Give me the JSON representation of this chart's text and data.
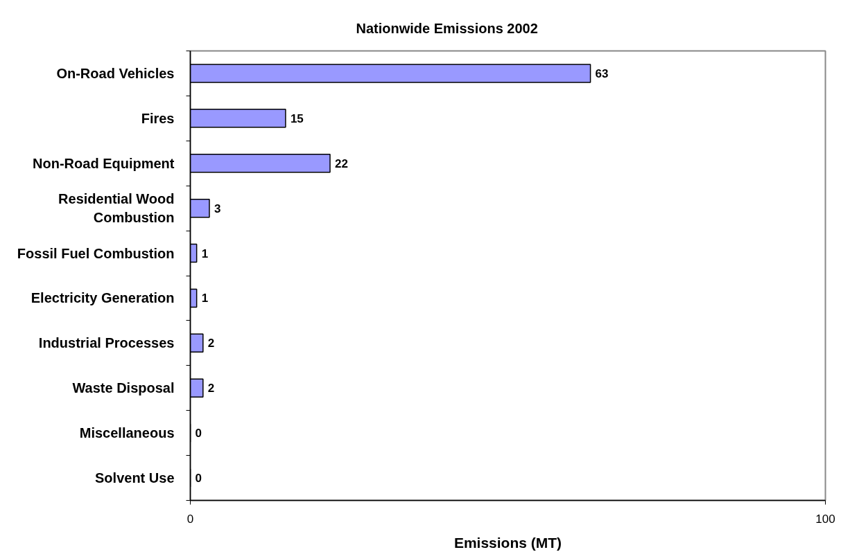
{
  "chart_data": {
    "type": "bar",
    "orientation": "horizontal",
    "title": "Nationwide Emissions 2002",
    "xlabel": "Emissions (MT)",
    "categories": [
      "On-Road Vehicles",
      "Fires",
      "Non-Road Equipment",
      "Residential Wood Combustion",
      "Fossil Fuel Combustion",
      "Electricity Generation",
      "Industrial Processes",
      "Waste Disposal",
      "Miscellaneous",
      "Solvent Use"
    ],
    "values": [
      63,
      15,
      22,
      3,
      1,
      1,
      2,
      2,
      0,
      0
    ],
    "color": "#9999ff",
    "xlim": [
      0,
      100
    ],
    "xticks": [
      0,
      100
    ],
    "grid": false,
    "data_labels": true
  }
}
